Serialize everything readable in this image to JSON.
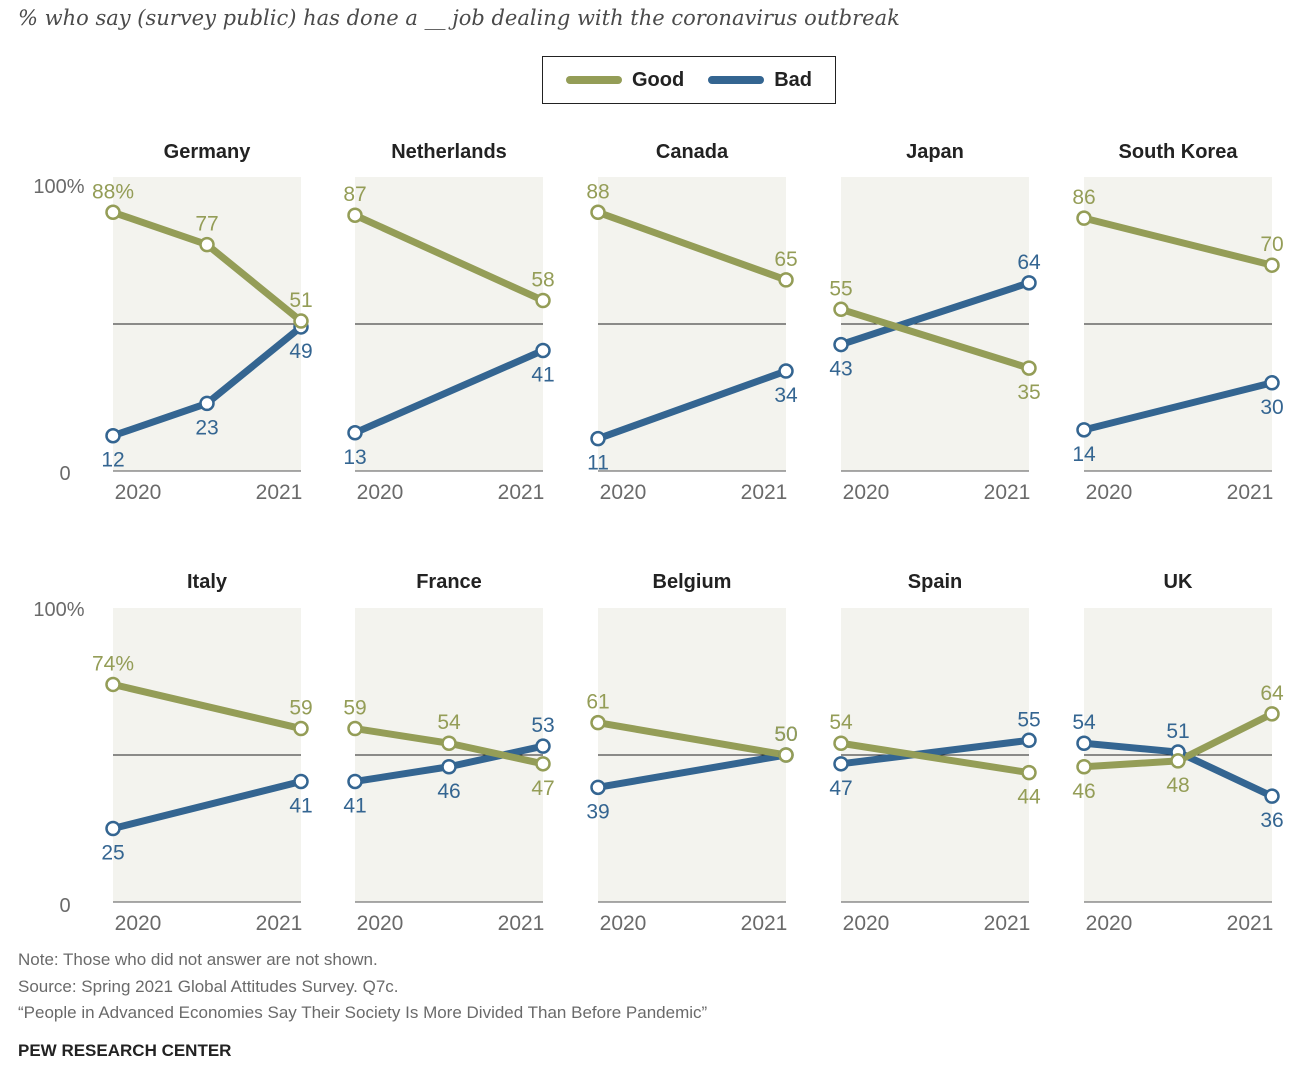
{
  "subtitle": "% who say (survey public) has done a __ job dealing with the coronavirus outbreak",
  "legend": {
    "good_label": "Good",
    "bad_label": "Bad"
  },
  "colors": {
    "good": "#949d57",
    "bad": "#346591",
    "panel_bg": "#f3f3ee",
    "axis": "#555555",
    "text": "#222222",
    "muted": "#6a6a6a"
  },
  "chart_data": {
    "type": "line",
    "x_ticks": [
      "2020",
      "2021"
    ],
    "ylim": [
      0,
      100
    ],
    "y_tick_rows": [
      [
        "100%",
        "0"
      ],
      [
        "100%",
        "0"
      ]
    ],
    "reference_line": 50,
    "series_names": [
      "Good",
      "Bad"
    ],
    "panels": [
      {
        "country": "Germany",
        "good": [
          88,
          77,
          51
        ],
        "bad": [
          12,
          23,
          49
        ],
        "good_labels": [
          "88%",
          "77",
          "51"
        ],
        "bad_labels": [
          "12",
          "23",
          "49"
        ]
      },
      {
        "country": "Netherlands",
        "good": [
          87,
          58
        ],
        "bad": [
          13,
          41
        ],
        "good_labels": [
          "87",
          "58"
        ],
        "bad_labels": [
          "13",
          "41"
        ]
      },
      {
        "country": "Canada",
        "good": [
          88,
          65
        ],
        "bad": [
          11,
          34
        ],
        "good_labels": [
          "88",
          "65"
        ],
        "bad_labels": [
          "11",
          "34"
        ]
      },
      {
        "country": "Japan",
        "good": [
          55,
          35
        ],
        "bad": [
          43,
          64
        ],
        "good_labels": [
          "55",
          "35"
        ],
        "bad_labels": [
          "43",
          "64"
        ]
      },
      {
        "country": "South Korea",
        "good": [
          86,
          70
        ],
        "bad": [
          14,
          30
        ],
        "good_labels": [
          "86",
          "70"
        ],
        "bad_labels": [
          "14",
          "30"
        ]
      },
      {
        "country": "Italy",
        "good": [
          74,
          59
        ],
        "bad": [
          25,
          41
        ],
        "good_labels": [
          "74%",
          "59"
        ],
        "bad_labels": [
          "25",
          "41"
        ]
      },
      {
        "country": "France",
        "good": [
          59,
          54,
          47
        ],
        "bad": [
          41,
          46,
          53
        ],
        "good_labels": [
          "59",
          "54",
          "47"
        ],
        "bad_labels": [
          "41",
          "46",
          "53"
        ]
      },
      {
        "country": "Belgium",
        "good": [
          61,
          50
        ],
        "bad": [
          39,
          50
        ],
        "good_labels": [
          "61",
          "50"
        ],
        "bad_labels": [
          "39",
          "50"
        ]
      },
      {
        "country": "Spain",
        "good": [
          54,
          44
        ],
        "bad": [
          47,
          55
        ],
        "good_labels": [
          "54",
          "44"
        ],
        "bad_labels": [
          "47",
          "55"
        ]
      },
      {
        "country": "UK",
        "good": [
          46,
          48,
          64
        ],
        "bad": [
          54,
          51,
          36
        ],
        "good_labels": [
          "46",
          "48",
          "64"
        ],
        "bad_labels": [
          "54",
          "51",
          "36"
        ]
      }
    ]
  },
  "footer": {
    "note": "Note: Those who did not answer are not shown.",
    "source": "Source: Spring 2021 Global Attitudes Survey. Q7c.",
    "report": "“People in Advanced Economies Say Their Society Is More Divided Than Before Pandemic”",
    "brand": "PEW RESEARCH CENTER"
  }
}
